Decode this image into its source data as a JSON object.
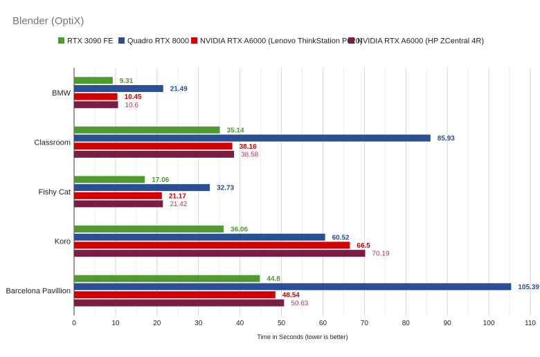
{
  "chart_data": {
    "type": "bar",
    "orientation": "horizontal",
    "title": "Blender (OptiX)",
    "xlabel": "Time in Seconds (lower is better)",
    "ylabel": "",
    "xlim": [
      0,
      110
    ],
    "xticks": [
      "0",
      "10",
      "20",
      "30",
      "40",
      "50",
      "60",
      "70",
      "80",
      "90",
      "100",
      "110"
    ],
    "grid": true,
    "legend_position": "top",
    "categories": [
      "BMW",
      "Classroom",
      "Fishy Cat",
      "Koro",
      "Barcelona Pavillion"
    ],
    "series": [
      {
        "name": "RTX 3090 FE",
        "color": "#4e9a2f",
        "label_color": "#4e9a2f",
        "label_bold": true,
        "values": [
          9.31,
          35.14,
          17.06,
          36.06,
          44.8
        ],
        "labels": [
          "9.31",
          "35.14",
          "17.06",
          "36.06",
          "44.8"
        ]
      },
      {
        "name": "Quadro RTX 8000",
        "color": "#2a4f94",
        "label_color": "#2a4f94",
        "label_bold": true,
        "values": [
          21.49,
          85.93,
          32.73,
          60.52,
          105.39
        ],
        "labels": [
          "21.49",
          "85.93",
          "32.73",
          "60.52",
          "105.39"
        ]
      },
      {
        "name": "NVIDIA RTX A6000 (Lenovo ThinkStation P620)",
        "color": "#d40000",
        "label_color": "#cc0000",
        "label_bold": true,
        "values": [
          10.45,
          38.16,
          21.17,
          66.5,
          48.54
        ],
        "labels": [
          "10.45",
          "38.16",
          "21.17",
          "66.5",
          "48.54"
        ]
      },
      {
        "name": "NVIDIA RTX A6000 (HP ZCentral 4R)",
        "color": "#7b1c45",
        "label_color": "#a83a5f",
        "label_bold": false,
        "values": [
          10.6,
          38.58,
          21.42,
          70.19,
          50.63
        ],
        "labels": [
          "10.6",
          "38.58",
          "21.42",
          "70.19",
          "50.63"
        ]
      }
    ]
  }
}
